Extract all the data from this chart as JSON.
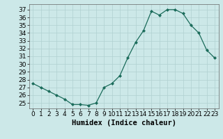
{
  "x": [
    0,
    1,
    2,
    3,
    4,
    5,
    6,
    7,
    8,
    9,
    10,
    11,
    12,
    13,
    14,
    15,
    16,
    17,
    18,
    19,
    20,
    21,
    22,
    23
  ],
  "y": [
    27.5,
    27.0,
    26.5,
    26.0,
    25.5,
    24.8,
    24.8,
    24.7,
    25.0,
    27.0,
    27.5,
    28.5,
    30.8,
    32.8,
    34.3,
    36.8,
    36.3,
    37.0,
    37.0,
    36.5,
    35.0,
    34.0,
    31.8,
    30.8
  ],
  "xlabel": "Humidex (Indice chaleur)",
  "ylim": [
    24.3,
    37.7
  ],
  "xlim": [
    -0.5,
    23.5
  ],
  "yticks": [
    25,
    26,
    27,
    28,
    29,
    30,
    31,
    32,
    33,
    34,
    35,
    36,
    37
  ],
  "xticks": [
    0,
    1,
    2,
    3,
    4,
    5,
    6,
    7,
    8,
    9,
    10,
    11,
    12,
    13,
    14,
    15,
    16,
    17,
    18,
    19,
    20,
    21,
    22,
    23
  ],
  "xtick_labels": [
    "0",
    "1",
    "2",
    "3",
    "4",
    "5",
    "6",
    "7",
    "8",
    "9",
    "10",
    "11",
    "12",
    "13",
    "14",
    "15",
    "16",
    "17",
    "18",
    "19",
    "20",
    "21",
    "22",
    "23"
  ],
  "line_color": "#1a6b5a",
  "marker": "D",
  "marker_size": 2.0,
  "background_color": "#cce8e8",
  "grid_color": "#b0d0d0",
  "xlabel_fontsize": 7.5,
  "tick_fontsize": 6.5,
  "fig_width": 3.2,
  "fig_height": 2.0,
  "dpi": 100
}
